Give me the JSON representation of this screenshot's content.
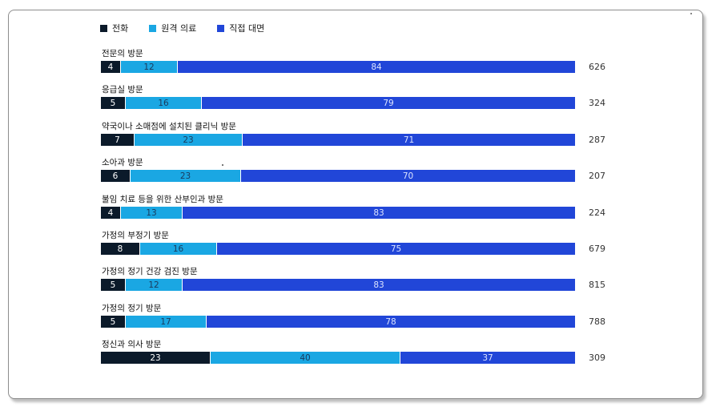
{
  "chart_data": {
    "type": "bar",
    "orientation": "horizontal",
    "stacked": true,
    "percent_scale": true,
    "title": "",
    "xlabel": "",
    "ylabel": "",
    "legend_position": "top-left",
    "grid": false,
    "series": [
      {
        "name": "전화",
        "color": "#0b1a2a",
        "text_color": "#ffffff",
        "values": [
          4,
          5,
          7,
          6,
          4,
          8,
          5,
          5,
          23
        ]
      },
      {
        "name": "원격 의료",
        "color": "#1aa7e3",
        "text_color": "#1a3a5c",
        "values": [
          12,
          16,
          23,
          23,
          13,
          16,
          12,
          17,
          40
        ]
      },
      {
        "name": "직접 대면",
        "color": "#2146d8",
        "text_color": "#dce4ff",
        "values": [
          84,
          79,
          71,
          70,
          83,
          75,
          83,
          78,
          37
        ]
      }
    ],
    "categories": [
      "전문의 방문",
      "응급실 방문",
      "약국이나 소매점에 설치된 클리닉 방문",
      "소아과 방문",
      "불임 치료 등을 위한 산부인과 방문",
      "가정의 부정기 방문",
      "가정의 정기 건강 검진 방문",
      "가정의 정기 방문",
      "정신과 의사 방문"
    ],
    "counts": [
      626,
      324,
      287,
      207,
      224,
      679,
      815,
      788,
      309
    ]
  }
}
